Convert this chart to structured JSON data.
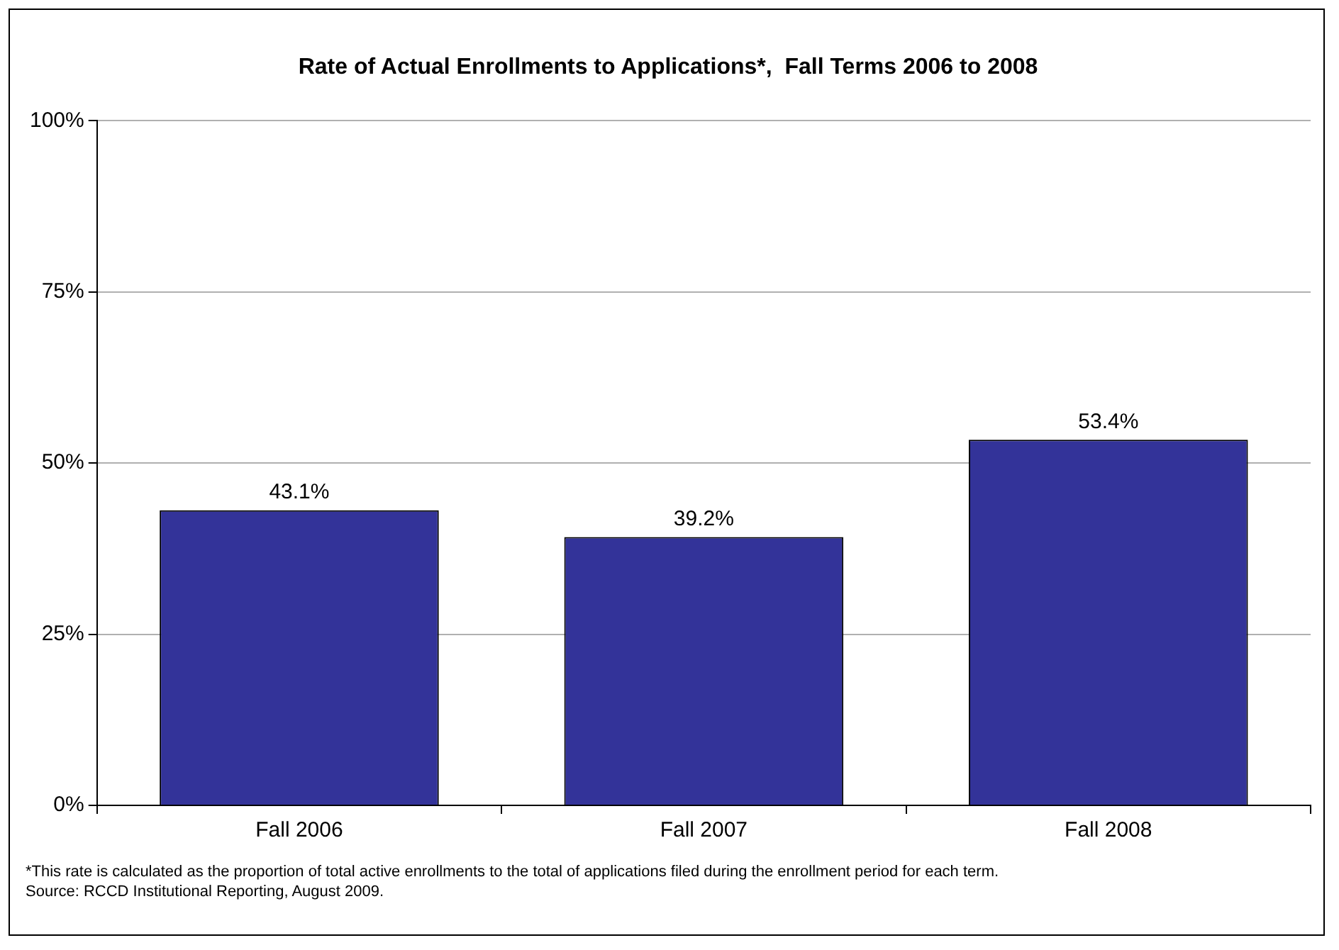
{
  "chart_data": {
    "type": "bar",
    "title": "Rate of Actual Enrollments to Applications*,  Fall Terms 2006 to 2008",
    "categories": [
      "Fall 2006",
      "Fall 2007",
      "Fall 2008"
    ],
    "values": [
      43.1,
      39.2,
      53.4
    ],
    "value_labels": [
      "43.1%",
      "39.2%",
      "53.4%"
    ],
    "color": "#333399",
    "ylim": [
      0,
      100
    ],
    "yticks": [
      {
        "value": 0,
        "label": "0%"
      },
      {
        "value": 25,
        "label": "25%"
      },
      {
        "value": 50,
        "label": "50%"
      },
      {
        "value": 75,
        "label": "75%"
      },
      {
        "value": 100,
        "label": "100%"
      }
    ],
    "grid": "y",
    "annotations": [
      "*This rate is calculated as the proportion of total active enrollments to the total of applications filed during the enrollment period for each term.",
      "Source: RCCD Institutional Reporting, August 2009."
    ]
  }
}
